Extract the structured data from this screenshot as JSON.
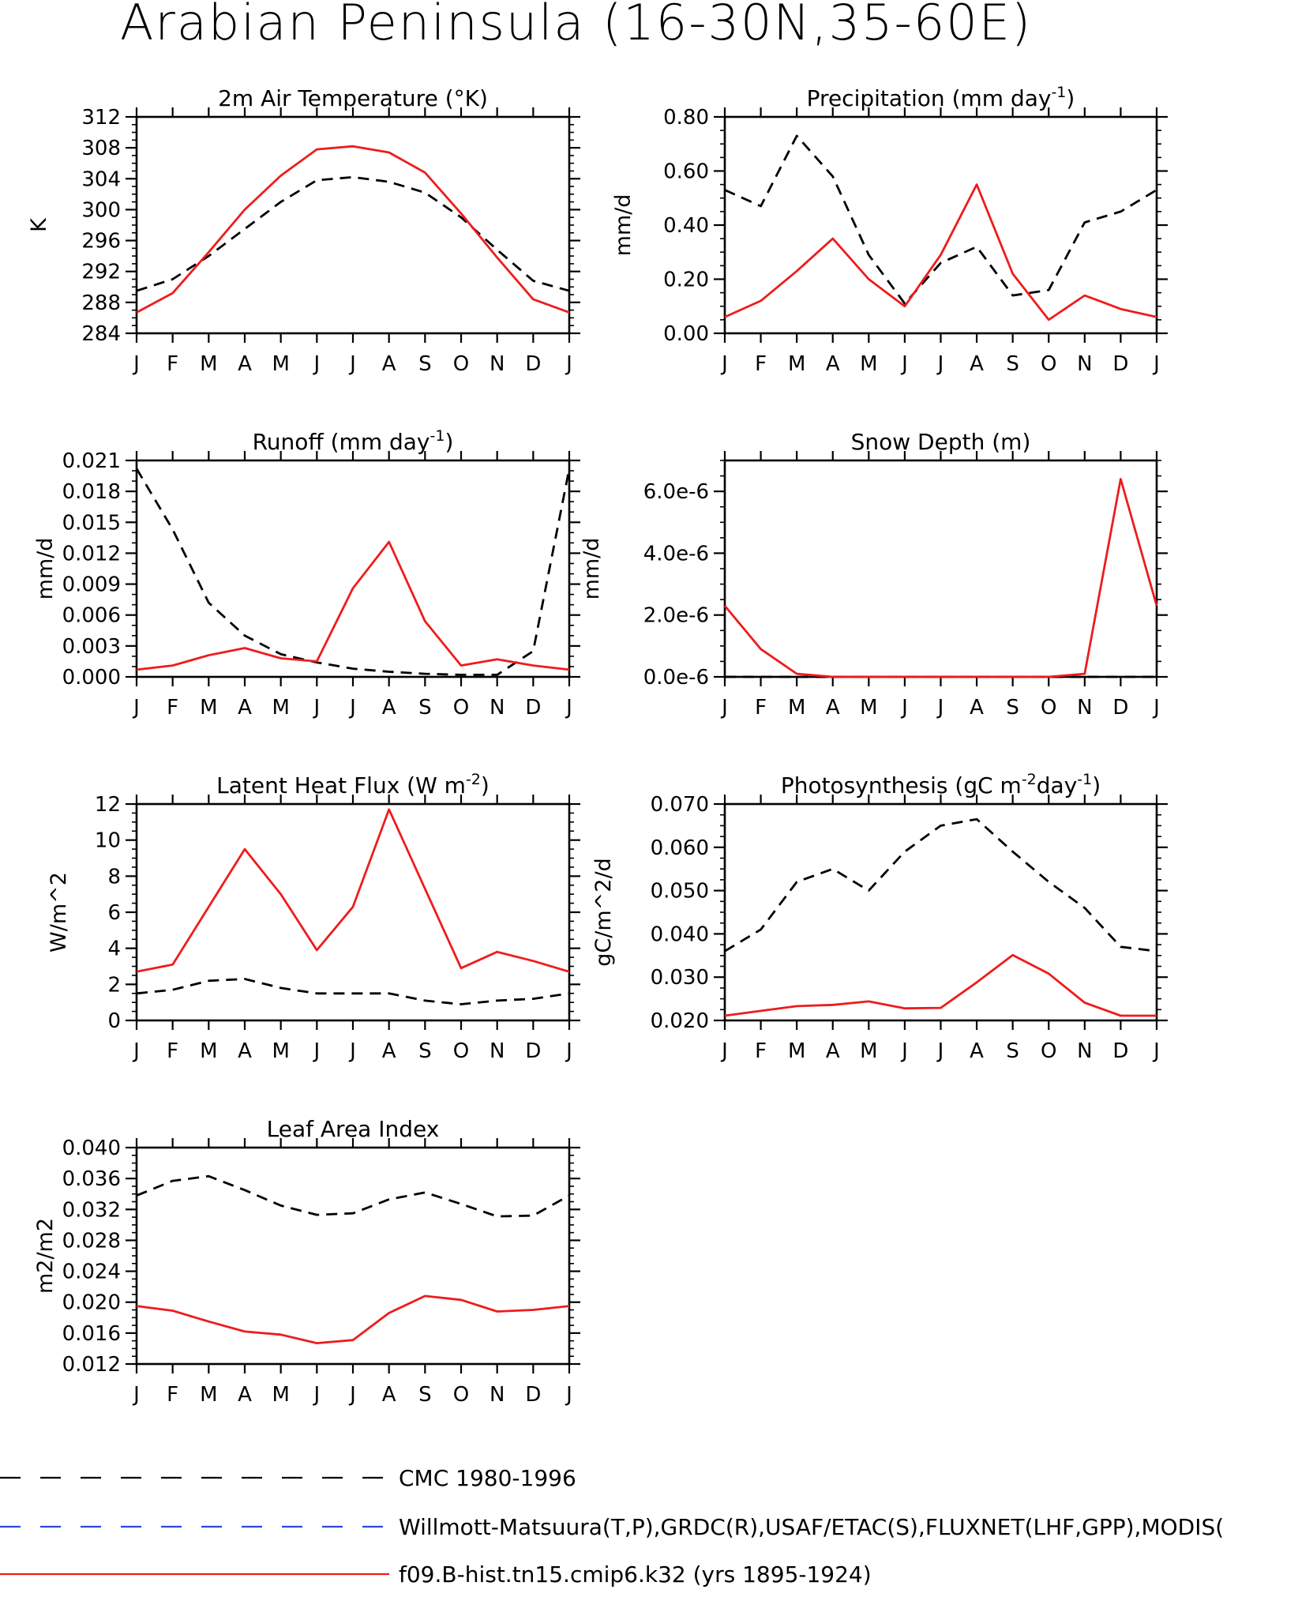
{
  "page_title": "Arabian Peninsula (16-30N,35-60E)",
  "months": [
    "J",
    "F",
    "M",
    "A",
    "M",
    "J",
    "J",
    "A",
    "S",
    "O",
    "N",
    "D",
    "J"
  ],
  "colors": {
    "obs": "#000000",
    "model": "#ee1c1c",
    "alt_obs": "#2f45d8"
  },
  "legend": [
    {
      "label": "CMC 1980-1996",
      "color": "#000000",
      "style": "dashed"
    },
    {
      "label": "Willmott-Matsuura(T,P),GRDC(R),USAF/ETAC(S),FLUXNET(LHF,GPP),MODIS(",
      "color": "#2f45d8",
      "style": "dashed"
    },
    {
      "label": "f09.B-hist.tn15.cmip6.k32 (yrs 1895-1924)",
      "color": "#ee1c1c",
      "style": "solid"
    }
  ],
  "chart_data": [
    {
      "id": "temperature",
      "type": "line",
      "title": "2m Air Temperature (°K)",
      "ylabel": "K",
      "ylim": [
        284,
        312
      ],
      "yticks": [
        "284",
        "288",
        "292",
        "296",
        "300",
        "304",
        "308",
        "312"
      ],
      "ytick_values": [
        284,
        288,
        292,
        296,
        300,
        304,
        308,
        312
      ],
      "minor_step": 1,
      "series": [
        {
          "role": "obs",
          "values": [
            289.5,
            291.0,
            294.0,
            297.5,
            301.0,
            303.8,
            304.2,
            303.6,
            302.2,
            299.0,
            294.8,
            290.8,
            289.5
          ]
        },
        {
          "role": "model",
          "values": [
            286.7,
            289.2,
            294.5,
            300.0,
            304.4,
            307.8,
            308.2,
            307.4,
            304.8,
            299.5,
            293.8,
            288.4,
            286.7
          ]
        }
      ]
    },
    {
      "id": "precipitation",
      "type": "line",
      "title": "Precipitation (mm day",
      "title_sup": "-1",
      "title_end": ")",
      "ylabel": "mm/d",
      "ylim": [
        0.0,
        0.8
      ],
      "yticks": [
        "0.00",
        "0.20",
        "0.40",
        "0.60",
        "0.80"
      ],
      "ytick_values": [
        0.0,
        0.2,
        0.4,
        0.6,
        0.8
      ],
      "minor_step": 0.05,
      "series": [
        {
          "role": "obs",
          "values": [
            0.53,
            0.47,
            0.73,
            0.58,
            0.29,
            0.11,
            0.26,
            0.32,
            0.14,
            0.16,
            0.41,
            0.45,
            0.53
          ]
        },
        {
          "role": "model",
          "values": [
            0.06,
            0.12,
            0.23,
            0.35,
            0.2,
            0.1,
            0.29,
            0.55,
            0.22,
            0.05,
            0.14,
            0.09,
            0.06
          ]
        }
      ]
    },
    {
      "id": "runoff",
      "type": "line",
      "title": "Runoff (mm day",
      "title_sup": "-1",
      "title_end": ")",
      "ylabel": "mm/d",
      "ylim": [
        0.0,
        0.021
      ],
      "yticks": [
        "0.000",
        "0.003",
        "0.006",
        "0.009",
        "0.012",
        "0.015",
        "0.018",
        "0.021"
      ],
      "ytick_values": [
        0.0,
        0.003,
        0.006,
        0.009,
        0.012,
        0.015,
        0.018,
        0.021
      ],
      "minor_step": 0.001,
      "series": [
        {
          "role": "obs",
          "values": [
            0.0202,
            0.0143,
            0.0072,
            0.004,
            0.0022,
            0.0014,
            0.0008,
            0.0005,
            0.0003,
            0.0002,
            0.0002,
            0.0025,
            0.0202
          ]
        },
        {
          "role": "model",
          "values": [
            0.0007,
            0.0011,
            0.0021,
            0.0028,
            0.0018,
            0.0015,
            0.0086,
            0.0131,
            0.0054,
            0.0011,
            0.0017,
            0.0011,
            0.0007
          ]
        }
      ]
    },
    {
      "id": "snow_depth",
      "type": "line",
      "title": "Snow Depth (m)",
      "ylabel": "mm/d",
      "ylim": [
        0.0,
        7e-06
      ],
      "yticks": [
        "0.0e-6",
        "2.0e-6",
        "4.0e-6",
        "6.0e-6"
      ],
      "ytick_values": [
        0.0,
        2e-06,
        4e-06,
        6e-06
      ],
      "minor_step": 5e-07,
      "series": [
        {
          "role": "obs",
          "values": [
            0,
            0,
            0,
            0,
            0,
            0,
            0,
            0,
            0,
            0,
            0,
            0,
            0
          ]
        },
        {
          "role": "model",
          "values": [
            2.3e-06,
            9e-07,
            1e-07,
            0,
            0,
            0,
            0,
            0,
            0,
            0,
            1e-07,
            6.4e-06,
            2.3e-06
          ]
        }
      ]
    },
    {
      "id": "latent_heat",
      "type": "line",
      "title": "Latent Heat Flux (W m",
      "title_sup": "-2",
      "title_end": ")",
      "ylabel": "W/m^2",
      "ylim": [
        0,
        12
      ],
      "yticks": [
        "0",
        "2",
        "4",
        "6",
        "8",
        "10",
        "12"
      ],
      "ytick_values": [
        0,
        2,
        4,
        6,
        8,
        10,
        12
      ],
      "minor_step": 0.5,
      "series": [
        {
          "role": "obs",
          "values": [
            1.5,
            1.7,
            2.2,
            2.3,
            1.8,
            1.5,
            1.5,
            1.5,
            1.1,
            0.9,
            1.1,
            1.2,
            1.5
          ]
        },
        {
          "role": "model",
          "values": [
            2.7,
            3.1,
            6.3,
            9.5,
            7.0,
            3.9,
            6.3,
            11.7,
            7.3,
            2.9,
            3.8,
            3.3,
            2.7
          ]
        }
      ]
    },
    {
      "id": "photosynthesis",
      "type": "line",
      "title": "Photosynthesis (gC m",
      "title_sup": "-2",
      "title_mid": "day",
      "title_sup2": "-1",
      "title_end": ")",
      "ylabel": "gC/m^2/d",
      "ylim": [
        0.02,
        0.07
      ],
      "yticks": [
        "0.020",
        "0.030",
        "0.040",
        "0.050",
        "0.060",
        "0.070"
      ],
      "ytick_values": [
        0.02,
        0.03,
        0.04,
        0.05,
        0.06,
        0.07
      ],
      "minor_step": 0.0025,
      "series": [
        {
          "role": "obs",
          "values": [
            0.036,
            0.041,
            0.052,
            0.055,
            0.05,
            0.059,
            0.065,
            0.0665,
            0.059,
            0.052,
            0.046,
            0.037,
            0.036
          ]
        },
        {
          "role": "model",
          "values": [
            0.0211,
            0.0222,
            0.0233,
            0.0236,
            0.0244,
            0.0228,
            0.0229,
            0.0288,
            0.0351,
            0.0308,
            0.0241,
            0.0211,
            0.0211
          ]
        }
      ]
    },
    {
      "id": "lai",
      "type": "line",
      "title": "Leaf Area Index",
      "ylabel": "m2/m2",
      "ylim": [
        0.012,
        0.04
      ],
      "yticks": [
        "0.012",
        "0.016",
        "0.020",
        "0.024",
        "0.028",
        "0.032",
        "0.036",
        "0.040"
      ],
      "ytick_values": [
        0.012,
        0.016,
        0.02,
        0.024,
        0.028,
        0.032,
        0.036,
        0.04
      ],
      "minor_step": 0.001,
      "series": [
        {
          "role": "obs",
          "values": [
            0.0338,
            0.0357,
            0.0363,
            0.0345,
            0.0325,
            0.0313,
            0.0315,
            0.0333,
            0.0342,
            0.0327,
            0.0311,
            0.0312,
            0.0338
          ]
        },
        {
          "role": "model",
          "values": [
            0.0195,
            0.0189,
            0.0175,
            0.0162,
            0.0158,
            0.0147,
            0.0151,
            0.0186,
            0.0208,
            0.0203,
            0.0188,
            0.019,
            0.0195
          ]
        }
      ]
    }
  ]
}
